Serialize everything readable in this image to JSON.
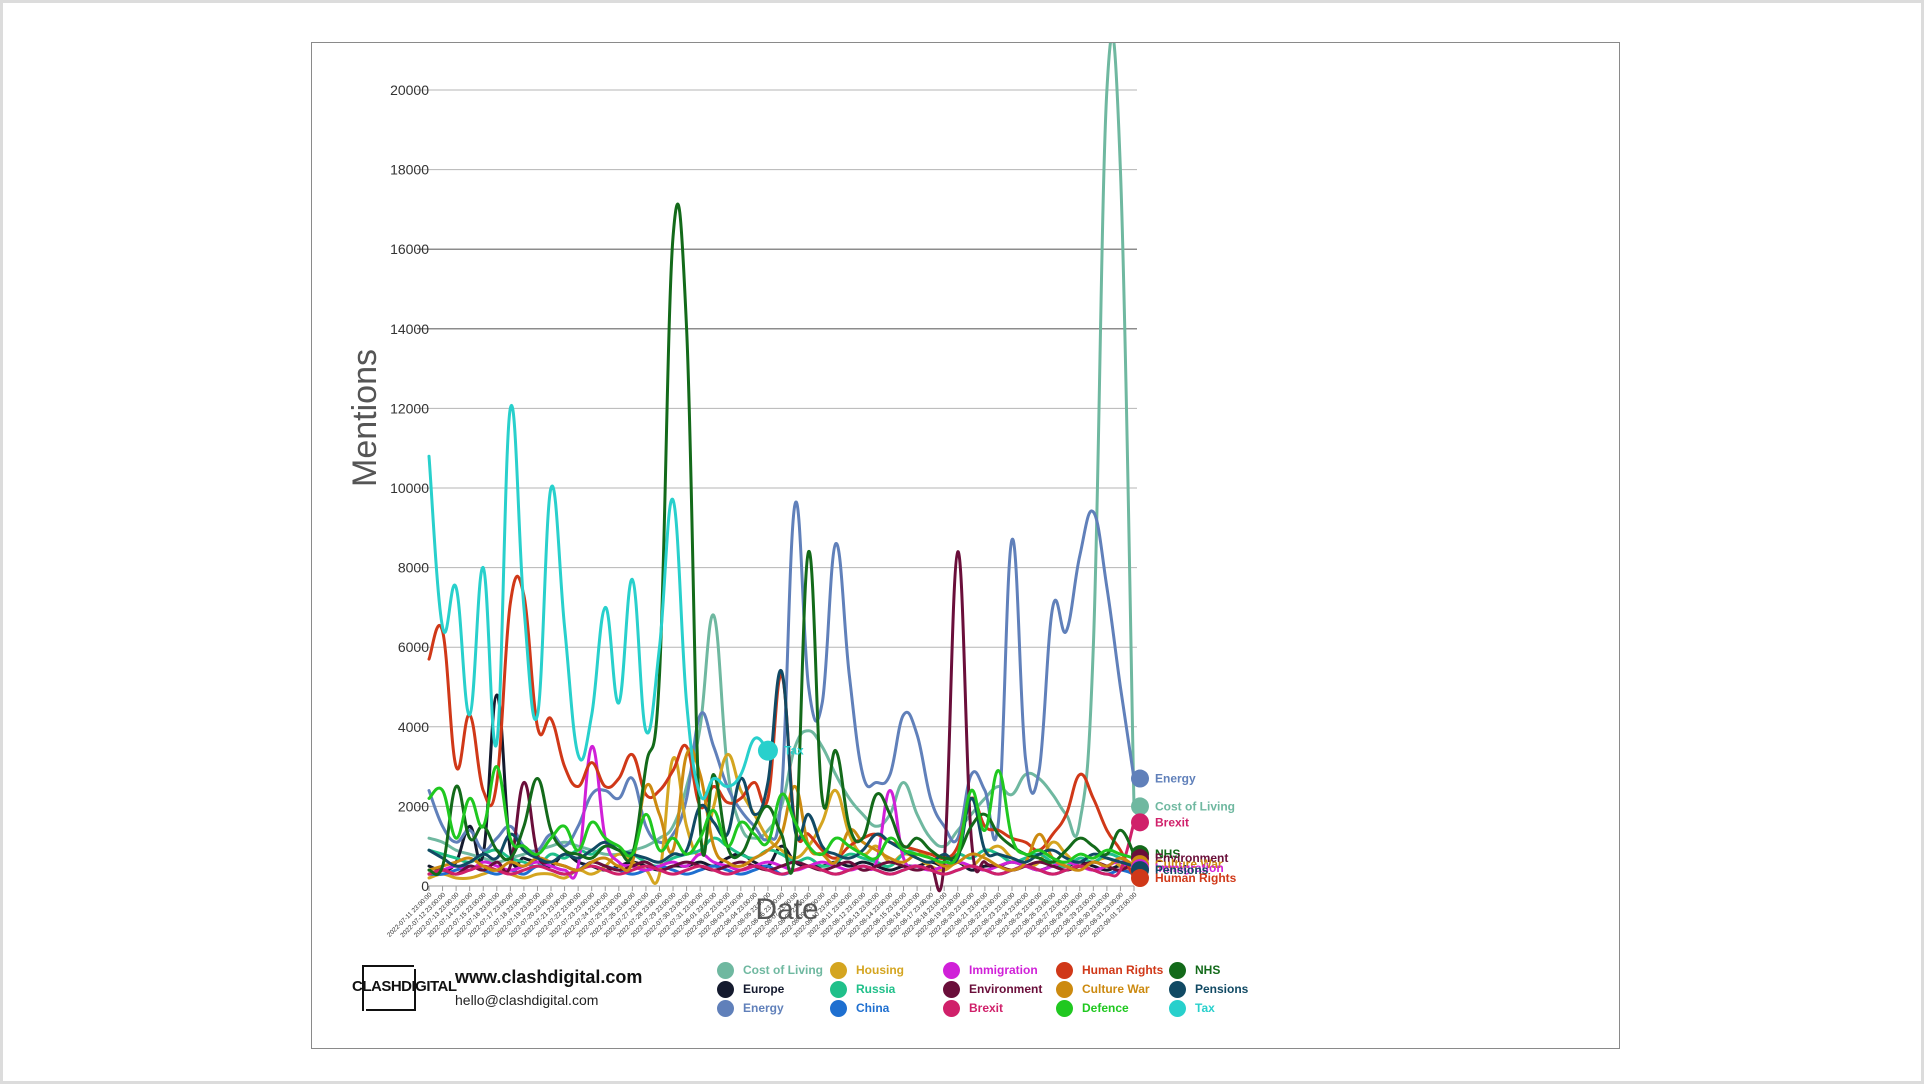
{
  "chart_data": {
    "type": "line",
    "xlabel": "Date",
    "ylabel": "Mentions",
    "ylim": [
      0,
      20000
    ],
    "y_ticks": [
      0,
      2000,
      4000,
      6000,
      8000,
      10000,
      12000,
      14000,
      16000,
      18000,
      20000
    ],
    "grid": "horizontal",
    "legend_position": "bottom",
    "x": [
      "2022-07-11 23:00:00",
      "2022-07-12 23:00:00",
      "2022-07-13 23:00:00",
      "2022-07-14 23:00:00",
      "2022-07-15 23:00:00",
      "2022-07-16 23:00:00",
      "2022-07-17 23:00:00",
      "2022-07-18 23:00:00",
      "2022-07-19 23:00:00",
      "2022-07-20 23:00:00",
      "2022-07-21 23:00:00",
      "2022-07-22 23:00:00",
      "2022-07-23 23:00:00",
      "2022-07-24 23:00:00",
      "2022-07-25 23:00:00",
      "2022-07-26 23:00:00",
      "2022-07-27 23:00:00",
      "2022-07-28 23:00:00",
      "2022-07-29 23:00:00",
      "2022-07-30 23:00:00",
      "2022-07-31 23:00:00",
      "2022-08-01 23:00:00",
      "2022-08-02 23:00:00",
      "2022-08-03 23:00:00",
      "2022-08-04 23:00:00",
      "2022-08-05 23:00:00",
      "2022-08-06 23:00:00",
      "2022-08-07 23:00:00",
      "2022-08-08 23:00:00",
      "2022-08-09 23:00:00",
      "2022-08-10 23:00:00",
      "2022-08-11 23:00:00",
      "2022-08-12 23:00:00",
      "2022-08-13 23:00:00",
      "2022-08-14 23:00:00",
      "2022-08-15 23:00:00",
      "2022-08-16 23:00:00",
      "2022-08-17 23:00:00",
      "2022-08-18 23:00:00",
      "2022-08-19 23:00:00",
      "2022-08-20 23:00:00",
      "2022-08-21 23:00:00",
      "2022-08-22 23:00:00",
      "2022-08-23 23:00:00",
      "2022-08-24 23:00:00",
      "2022-08-25 23:00:00",
      "2022-08-26 23:00:00",
      "2022-08-27 23:00:00",
      "2022-08-28 23:00:00",
      "2022-08-29 23:00:00",
      "2022-08-30 23:00:00",
      "2022-08-31 23:00:00",
      "2022-09-01 23:00:00"
    ],
    "series": [
      {
        "name": "Cost of Living",
        "color": "#6fb8a0",
        "values": [
          1200,
          1100,
          900,
          800,
          700,
          600,
          700,
          800,
          900,
          1000,
          1100,
          1000,
          900,
          800,
          800,
          900,
          1000,
          1200,
          1500,
          2500,
          4000,
          6800,
          3000,
          1500,
          1200,
          1400,
          2000,
          3500,
          3900,
          3500,
          2800,
          2200,
          1800,
          1500,
          1800,
          2600,
          1800,
          1200,
          1000,
          1400,
          1800,
          2200,
          2500,
          2300,
          2800,
          2700,
          2300,
          1800,
          1600,
          6000,
          20000,
          18000,
          2000
        ]
      },
      {
        "name": "Europe",
        "color": "#141a2e",
        "values": [
          500,
          400,
          600,
          1500,
          800,
          4800,
          900,
          700,
          600,
          500,
          800,
          600,
          500,
          400,
          500,
          600,
          500,
          400,
          500,
          500,
          600,
          500,
          700,
          800,
          600,
          500,
          1000,
          600,
          500,
          500,
          600,
          500,
          600,
          500,
          400,
          500,
          500,
          600,
          500,
          600,
          400,
          500,
          500,
          600,
          500,
          400,
          500,
          500,
          600,
          500,
          400,
          500,
          300
        ]
      },
      {
        "name": "Energy",
        "color": "#6080ba",
        "values": [
          2400,
          1500,
          1100,
          1400,
          900,
          1200,
          1500,
          1000,
          900,
          1300,
          1000,
          1500,
          2300,
          2400,
          2200,
          2700,
          1500,
          1100,
          1300,
          2200,
          4300,
          3500,
          2500,
          1900,
          1500,
          1200,
          2300,
          9600,
          5000,
          4600,
          8600,
          5300,
          2800,
          2600,
          2800,
          4300,
          3800,
          2200,
          1500,
          1200,
          2800,
          2400,
          1600,
          8700,
          3200,
          2900,
          7000,
          6400,
          8300,
          9400,
          7500,
          5000,
          2700
        ]
      },
      {
        "name": "Housing",
        "color": "#d4a520",
        "values": [
          200,
          300,
          200,
          200,
          300,
          400,
          300,
          200,
          300,
          300,
          200,
          400,
          300,
          500,
          800,
          600,
          400,
          300,
          3200,
          1500,
          800,
          2000,
          3300,
          2400,
          1800,
          1200,
          900,
          700,
          1000,
          1600,
          2400,
          1300,
          800,
          1000,
          600,
          800,
          700,
          500,
          400,
          600,
          500,
          800,
          1000,
          700,
          500,
          600,
          1100,
          800,
          500,
          600,
          700,
          500,
          300
        ]
      },
      {
        "name": "Russia",
        "color": "#20c08a",
        "values": [
          900,
          800,
          700,
          600,
          800,
          900,
          700,
          600,
          500,
          800,
          700,
          900,
          800,
          1000,
          900,
          800,
          600,
          500,
          700,
          800,
          900,
          1200,
          1000,
          800,
          700,
          900,
          800,
          600,
          700,
          500,
          600,
          800,
          700,
          600,
          500,
          800,
          900,
          700,
          600,
          800,
          700,
          900,
          800,
          600,
          700,
          800,
          600,
          500,
          700,
          600,
          800,
          700,
          500
        ]
      },
      {
        "name": "China",
        "color": "#1e6fd0",
        "values": [
          300,
          300,
          400,
          500,
          400,
          300,
          400,
          300,
          500,
          400,
          300,
          400,
          600,
          500,
          400,
          300,
          400,
          500,
          400,
          300,
          400,
          500,
          400,
          300,
          400,
          500,
          300,
          400,
          500,
          400,
          300,
          400,
          500,
          400,
          300,
          400,
          500,
          400,
          300,
          400,
          500,
          400,
          300,
          400,
          500,
          400,
          300,
          400,
          500,
          400,
          300,
          400,
          300
        ]
      },
      {
        "name": "Immigration",
        "color": "#d020d8",
        "values": [
          300,
          400,
          500,
          400,
          600,
          500,
          400,
          500,
          600,
          500,
          400,
          500,
          3500,
          1200,
          600,
          500,
          400,
          500,
          600,
          500,
          800,
          600,
          500,
          400,
          500,
          600,
          500,
          400,
          500,
          600,
          500,
          400,
          500,
          600,
          2400,
          700,
          500,
          400,
          500,
          600,
          500,
          400,
          500,
          600,
          500,
          400,
          500,
          600,
          500,
          400,
          500,
          600,
          300
        ]
      },
      {
        "name": "Environment",
        "color": "#6a0e3a",
        "values": [
          300,
          400,
          300,
          500,
          400,
          600,
          500,
          2600,
          800,
          600,
          500,
          400,
          600,
          500,
          400,
          500,
          600,
          400,
          500,
          600,
          500,
          400,
          500,
          600,
          500,
          400,
          500,
          600,
          500,
          400,
          500,
          600,
          400,
          500,
          600,
          500,
          400,
          500,
          600,
          8400,
          1200,
          600,
          500,
          400,
          500,
          600,
          500,
          400,
          500,
          600,
          500,
          400,
          600
        ]
      },
      {
        "name": "Brexit",
        "color": "#d0206a",
        "values": [
          300,
          400,
          300,
          400,
          500,
          400,
          300,
          400,
          500,
          400,
          300,
          400,
          500,
          400,
          300,
          400,
          500,
          400,
          300,
          400,
          500,
          400,
          300,
          400,
          500,
          400,
          300,
          400,
          500,
          400,
          300,
          400,
          500,
          400,
          300,
          400,
          500,
          400,
          300,
          400,
          500,
          400,
          300,
          400,
          500,
          400,
          300,
          400,
          500,
          400,
          300,
          400,
          1600
        ]
      },
      {
        "name": "Human Rights",
        "color": "#d03818",
        "values": [
          5700,
          6400,
          3000,
          4300,
          2400,
          2600,
          7100,
          7300,
          4000,
          4200,
          3000,
          2500,
          3100,
          2500,
          2700,
          3300,
          2300,
          2400,
          2900,
          3500,
          2000,
          2500,
          2100,
          2200,
          2600,
          2200,
          5300,
          1500,
          1300,
          900,
          700,
          1000,
          1200,
          1300,
          1100,
          1000,
          900,
          800,
          700,
          1000,
          2200,
          1500,
          1400,
          1200,
          1100,
          900,
          1300,
          1800,
          2800,
          2200,
          1400,
          900,
          200
        ]
      },
      {
        "name": "Culture War",
        "color": "#cc8a10",
        "values": [
          400,
          500,
          600,
          700,
          500,
          400,
          600,
          500,
          700,
          600,
          500,
          400,
          600,
          700,
          500,
          600,
          2500,
          1800,
          900,
          3300,
          2800,
          1000,
          600,
          500,
          700,
          900,
          1300,
          2500,
          1000,
          800,
          600,
          1400,
          1100,
          900,
          700,
          600,
          800,
          700,
          500,
          600,
          800,
          700,
          500,
          400,
          600,
          1300,
          700,
          500,
          400,
          600,
          500,
          700,
          500
        ]
      },
      {
        "name": "Pensions",
        "color": "#114a64",
        "values": [
          900,
          700,
          500,
          600,
          800,
          700,
          1300,
          900,
          700,
          600,
          800,
          700,
          900,
          1100,
          900,
          800,
          700,
          600,
          800,
          900,
          2000,
          1600,
          1300,
          2700,
          1800,
          2600,
          5400,
          1400,
          1800,
          1000,
          800,
          700,
          900,
          1300,
          1100,
          900,
          700,
          600,
          800,
          700,
          2200,
          900,
          800,
          700,
          600,
          800,
          900,
          700,
          600,
          800,
          700,
          600,
          500
        ]
      },
      {
        "name": "NHS",
        "color": "#136a1a",
        "values": [
          400,
          500,
          2500,
          1200,
          1500,
          900,
          700,
          1500,
          2700,
          1400,
          900,
          800,
          700,
          1000,
          900,
          800,
          3000,
          5300,
          16300,
          14000,
          1500,
          2800,
          1000,
          800,
          1500,
          2000,
          1300,
          900,
          8400,
          2200,
          3400,
          1500,
          1200,
          2300,
          1800,
          1000,
          1200,
          900,
          700,
          800,
          1500,
          1800,
          1300,
          1000,
          800,
          700,
          600,
          900,
          1200,
          1000,
          800,
          1400,
          800
        ]
      },
      {
        "name": "Defence",
        "color": "#20c820",
        "values": [
          2200,
          2400,
          1200,
          2200,
          1500,
          3000,
          1200,
          1000,
          800,
          1200,
          1500,
          900,
          1600,
          1200,
          1000,
          800,
          1800,
          900,
          1200,
          800,
          1200,
          1900,
          1000,
          1600,
          1300,
          1100,
          2300,
          1600,
          1000,
          800,
          1200,
          1000,
          800,
          700,
          1200,
          900,
          800,
          700,
          600,
          800,
          2400,
          1400,
          2900,
          1200,
          800,
          900,
          700,
          600,
          800,
          700,
          900,
          800,
          700
        ]
      },
      {
        "name": "Tax",
        "color": "#28d0cc",
        "values": [
          10800,
          6500,
          7500,
          4300,
          8000,
          3600,
          12000,
          7000,
          4300,
          10000,
          6500,
          3300,
          4300,
          7000,
          4600,
          7700,
          3900,
          6000,
          9700,
          4600,
          2300,
          2700,
          2500,
          2800,
          3700,
          3400,
          null,
          null,
          null,
          null,
          null,
          null,
          null,
          null,
          null,
          null,
          null,
          null,
          null,
          null,
          null,
          null,
          null,
          null,
          null,
          null,
          null,
          null,
          null,
          null,
          null,
          null,
          null
        ]
      }
    ],
    "end_labels": [
      {
        "name": "Energy",
        "value": 2700
      },
      {
        "name": "Cost of Living",
        "value": 2000
      },
      {
        "name": "Brexit",
        "value": 1600
      },
      {
        "name": "NHS",
        "value": 800
      },
      {
        "name": "Environment",
        "value": 700
      },
      {
        "name": "Culture War",
        "value": 550
      },
      {
        "name": "Immigration",
        "value": 450
      },
      {
        "name": "Pensions",
        "value": 400
      },
      {
        "name": "Human Rights",
        "value": 200
      }
    ],
    "tax_end": {
      "name": "Tax",
      "value": 3400
    }
  },
  "branding": {
    "logo_text": "CLASHDIGITAL",
    "website": "www.clashdigital.com",
    "email": "hello@clashdigital.com"
  },
  "legend": [
    [
      "Cost of Living",
      "Europe",
      "Energy"
    ],
    [
      "Housing",
      "Russia",
      "China"
    ],
    [
      "Immigration",
      "Environment",
      "Brexit"
    ],
    [
      "Human Rights",
      "Culture War",
      "Defence"
    ],
    [
      "NHS",
      "Pensions",
      "Tax"
    ]
  ]
}
